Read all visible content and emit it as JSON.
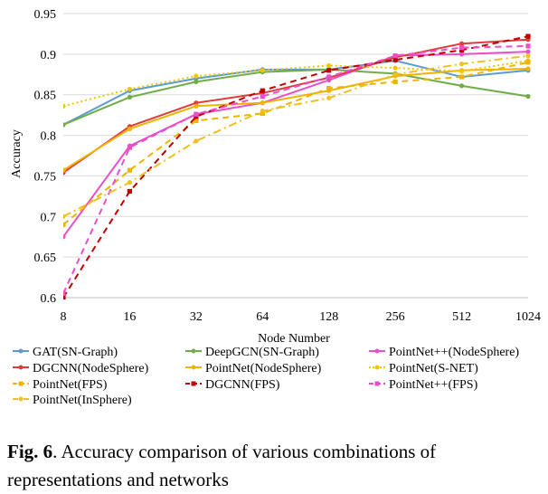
{
  "chart_data": {
    "type": "line",
    "xlabel": "Node Number",
    "ylabel": "Accuracy",
    "categories": [
      "8",
      "16",
      "32",
      "64",
      "128",
      "256",
      "512",
      "1024"
    ],
    "yticks": [
      "0.6",
      "0.65",
      "0.7",
      "0.75",
      "0.8",
      "0.85",
      "0.9",
      "0.95"
    ],
    "ylim": [
      0.6,
      0.95
    ],
    "grid": "horizontal",
    "legend_position": "bottom",
    "series": [
      {
        "name": "GAT(SN-Graph)",
        "color": "#5b9bd5",
        "style": "solid",
        "marker": "circle",
        "values": [
          0.813,
          0.855,
          0.87,
          0.881,
          0.881,
          0.892,
          0.872,
          0.88
        ]
      },
      {
        "name": "DeepGCN(SN-Graph)",
        "color": "#70ad47",
        "style": "solid",
        "marker": "circle",
        "values": [
          0.813,
          0.847,
          0.866,
          0.878,
          0.881,
          0.876,
          0.861,
          0.848
        ]
      },
      {
        "name": "PointNet++(NodeSphere)",
        "color": "#e84fc9",
        "style": "solid",
        "marker": "circle",
        "values": [
          0.675,
          0.787,
          0.826,
          0.84,
          0.868,
          0.898,
          0.9,
          0.903
        ]
      },
      {
        "name": "DGCNN(NodeSphere)",
        "color": "#e03b3b",
        "style": "solid",
        "marker": "circle",
        "values": [
          0.754,
          0.811,
          0.84,
          0.852,
          0.871,
          0.896,
          0.913,
          0.918
        ]
      },
      {
        "name": "PointNet(NodeSphere)",
        "color": "#f0b400",
        "style": "solid",
        "marker": "circle",
        "values": [
          0.757,
          0.808,
          0.836,
          0.84,
          0.855,
          0.873,
          0.88,
          0.882
        ]
      },
      {
        "name": "PointNet(S-NET)",
        "color": "#f5c400",
        "style": "dotted",
        "marker": "circle",
        "values": [
          0.836,
          0.857,
          0.873,
          0.88,
          0.886,
          0.883,
          0.879,
          0.892
        ]
      },
      {
        "name": "PointNet(FPS)",
        "color": "#f0b400",
        "style": "dashed",
        "marker": "square",
        "values": [
          0.69,
          0.757,
          0.818,
          0.827,
          0.858,
          0.866,
          0.872,
          0.89
        ]
      },
      {
        "name": "DGCNN(FPS)",
        "color": "#c00000",
        "style": "dashed",
        "marker": "square",
        "values": [
          0.6,
          0.731,
          0.823,
          0.855,
          0.88,
          0.893,
          0.905,
          0.922
        ]
      },
      {
        "name": "PointNet++(FPS)",
        "color": "#e84fc9",
        "style": "dashed",
        "marker": "square",
        "values": [
          0.605,
          0.785,
          0.826,
          0.848,
          0.872,
          0.898,
          0.908,
          0.91
        ]
      },
      {
        "name": "PointNet(InSphere)",
        "color": "#f0c020",
        "style": "dashdot",
        "marker": "circle",
        "values": [
          0.7,
          0.742,
          0.793,
          0.83,
          0.846,
          0.875,
          0.888,
          0.898
        ]
      }
    ]
  },
  "caption": {
    "label": "Fig. 6",
    "text": ". Accuracy comparison of various combinations of representations and networks"
  }
}
